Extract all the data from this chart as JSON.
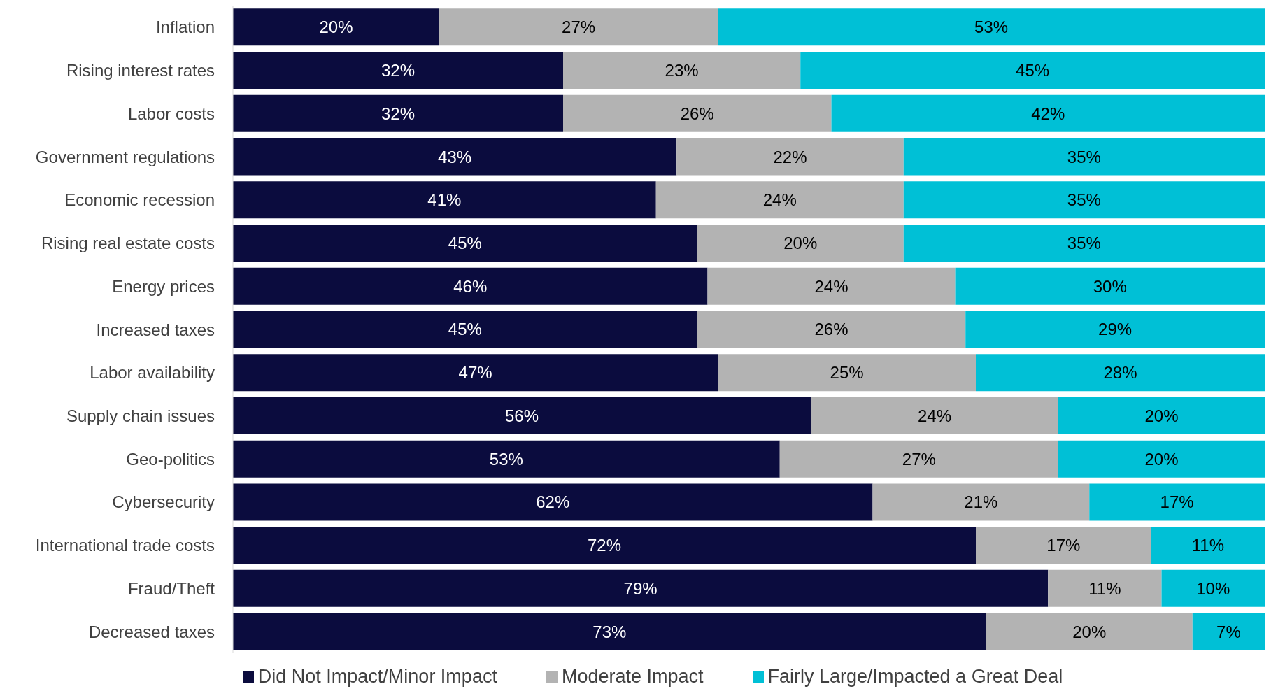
{
  "chart_data": {
    "type": "bar",
    "orientation": "horizontal",
    "stacked": true,
    "legend": "bottom",
    "tick_labels": "y",
    "categories": [
      "Inflation",
      "Rising interest rates",
      "Labor costs",
      "Government regulations",
      "Economic recession",
      "Rising real estate costs",
      "Energy prices",
      "Increased taxes",
      "Labor availability",
      "Supply chain issues",
      "Geo-politics",
      "Cybersecurity",
      "International trade costs",
      "Fraud/Theft",
      "Decreased taxes"
    ],
    "series": [
      {
        "name": "Did Not Impact/Minor Impact",
        "color": "#0b0c3e",
        "values": [
          20,
          32,
          32,
          43,
          41,
          45,
          46,
          45,
          47,
          56,
          53,
          62,
          72,
          79,
          73
        ],
        "value_labels": [
          "20%",
          "32%",
          "32%",
          "43%",
          "41%",
          "45%",
          "46%",
          "45%",
          "47%",
          "56%",
          "53%",
          "62%",
          "72%",
          "79%",
          "73%"
        ]
      },
      {
        "name": "Moderate Impact",
        "color": "#b3b3b3",
        "values": [
          27,
          23,
          26,
          22,
          24,
          20,
          24,
          26,
          25,
          24,
          27,
          21,
          17,
          11,
          20
        ],
        "value_labels": [
          "27%",
          "23%",
          "26%",
          "22%",
          "24%",
          "20%",
          "24%",
          "26%",
          "25%",
          "24%",
          "27%",
          "21%",
          "17%",
          "11%",
          "20%"
        ]
      },
      {
        "name": "Fairly Large/Impacted a Great Deal",
        "color": "#00c0d6",
        "values": [
          53,
          45,
          42,
          35,
          35,
          35,
          30,
          29,
          28,
          20,
          20,
          17,
          11,
          10,
          7
        ],
        "value_labels": [
          "53%",
          "45%",
          "42%",
          "35%",
          "35%",
          "35%",
          "30%",
          "29%",
          "28%",
          "20%",
          "20%",
          "17%",
          "11%",
          "10%",
          "7%"
        ]
      }
    ]
  }
}
